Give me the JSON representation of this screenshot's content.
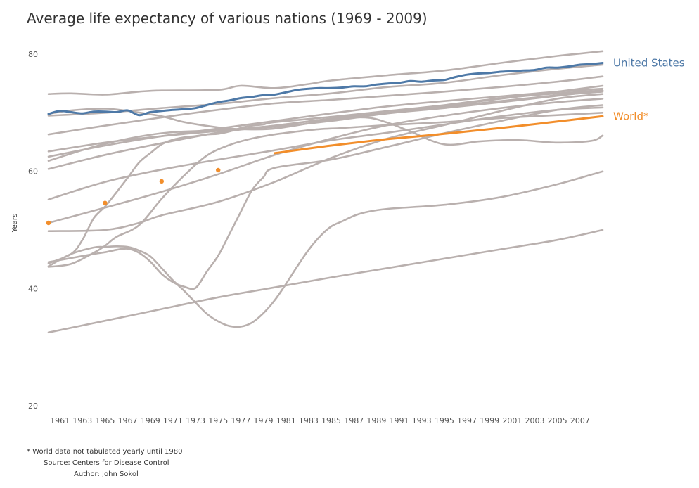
{
  "chart_data": {
    "type": "line",
    "title": "Average life expectancy of various nations (1969 - 2009)",
    "ylabel": "Years",
    "xlabel": "",
    "ylim": [
      20,
      80
    ],
    "xlim": [
      1960,
      2009
    ],
    "yticks": [
      20,
      40,
      60,
      80
    ],
    "xticks": [
      "1961",
      "1963",
      "1965",
      "1967",
      "1969",
      "1971",
      "1973",
      "1975",
      "1977",
      "1979",
      "1981",
      "1983",
      "1985",
      "1987",
      "1989",
      "1991",
      "1993",
      "1995",
      "1997",
      "1999",
      "2001",
      "2003",
      "2005",
      "2007"
    ],
    "grid": false,
    "colors": {
      "background_series": "#b9b0ae",
      "united_states": "#4e79a7",
      "world": "#f28e2b"
    },
    "highlighted": [
      {
        "name": "United States",
        "color": "#4e79a7",
        "x": [
          1960,
          1961,
          1962,
          1963,
          1964,
          1965,
          1966,
          1967,
          1968,
          1969,
          1970,
          1971,
          1972,
          1973,
          1974,
          1975,
          1976,
          1977,
          1978,
          1979,
          1980,
          1981,
          1982,
          1983,
          1984,
          1985,
          1986,
          1987,
          1988,
          1989,
          1990,
          1991,
          1992,
          1993,
          1994,
          1995,
          1996,
          1997,
          1998,
          1999,
          2000,
          2001,
          2002,
          2003,
          2004,
          2005,
          2006,
          2007,
          2008,
          2009
        ],
        "y": [
          69.8,
          70.3,
          70.1,
          69.9,
          70.2,
          70.2,
          70.1,
          70.4,
          69.6,
          70.1,
          70.3,
          70.5,
          70.6,
          70.8,
          71.3,
          71.8,
          72.1,
          72.5,
          72.7,
          73.0,
          73.1,
          73.5,
          73.9,
          74.1,
          74.2,
          74.2,
          74.3,
          74.5,
          74.5,
          74.8,
          75.0,
          75.1,
          75.4,
          75.3,
          75.5,
          75.6,
          76.1,
          76.5,
          76.7,
          76.8,
          77.0,
          77.1,
          77.2,
          77.3,
          77.7,
          77.7,
          77.9,
          78.2,
          78.3,
          78.5
        ]
      },
      {
        "name": "World*",
        "color": "#f28e2b",
        "x": [
          1980,
          1985,
          1990,
          1995,
          2000,
          2005,
          2009
        ],
        "y": [
          63.1,
          64.4,
          65.5,
          66.4,
          67.4,
          68.5,
          69.4
        ],
        "points": {
          "x": [
            1960,
            1965,
            1970,
            1975
          ],
          "y": [
            51.2,
            54.6,
            58.3,
            60.2
          ]
        }
      }
    ],
    "background_series": [
      {
        "x": [
          1960,
          1962,
          1965,
          1968,
          1970,
          1975,
          1977,
          1980,
          1983,
          1985,
          1990,
          1995,
          2000,
          2005,
          2007,
          2009
        ],
        "y": [
          73.2,
          73.3,
          73.1,
          73.6,
          73.8,
          73.9,
          74.6,
          74.2,
          74.9,
          75.5,
          76.4,
          77.2,
          78.5,
          79.7,
          80.1,
          80.5
        ]
      },
      {
        "x": [
          1960,
          1965,
          1970,
          1975,
          1980,
          1985,
          1990,
          1995,
          2000,
          2005,
          2009
        ],
        "y": [
          69.5,
          70.0,
          70.8,
          71.5,
          72.5,
          73.3,
          74.4,
          75.1,
          76.4,
          77.5,
          78.2
        ]
      },
      {
        "x": [
          1960,
          1965,
          1970,
          1975,
          1980,
          1985,
          1990,
          1995,
          2000,
          2005,
          2009
        ],
        "y": [
          66.3,
          67.8,
          69.2,
          70.5,
          71.6,
          72.2,
          72.9,
          73.6,
          74.4,
          75.3,
          76.2
        ]
      },
      {
        "x": [
          1960,
          1965,
          1970,
          1975,
          1980,
          1985,
          1990,
          1995,
          2000,
          2005,
          2009
        ],
        "y": [
          63.4,
          64.9,
          66.0,
          66.9,
          67.8,
          69.0,
          70.0,
          71.2,
          72.4,
          73.6,
          74.6
        ]
      },
      {
        "x": [
          1960,
          1965,
          1970,
          1975,
          1980,
          1985,
          1990,
          1995,
          2000,
          2005,
          2009
        ],
        "y": [
          62.5,
          64.4,
          66.0,
          67.3,
          68.6,
          69.9,
          71.1,
          72.0,
          72.8,
          73.6,
          74.1
        ]
      },
      {
        "x": [
          1960,
          1965,
          1970,
          1975,
          1980,
          1985,
          1990,
          1995,
          2000,
          2005,
          2009
        ],
        "y": [
          61.8,
          64.7,
          66.5,
          67.0,
          67.6,
          68.6,
          69.9,
          70.8,
          71.8,
          72.9,
          73.8
        ]
      },
      {
        "x": [
          1960,
          1965,
          1970,
          1975,
          1980,
          1985,
          1990,
          1995,
          2000,
          2005,
          2009
        ],
        "y": [
          60.4,
          62.8,
          64.8,
          66.6,
          67.8,
          69.0,
          70.0,
          71.0,
          72.0,
          73.0,
          73.6
        ]
      },
      {
        "x": [
          1960,
          1962,
          1965,
          1967,
          1970,
          1972,
          1975,
          1977,
          1980,
          1985,
          1988,
          1990,
          1992,
          1995,
          1998,
          2000,
          2002,
          2005,
          2008,
          2009
        ],
        "y": [
          69.8,
          70.4,
          70.7,
          70.3,
          69.4,
          68.4,
          67.5,
          67.2,
          67.3,
          68.8,
          69.2,
          68.3,
          66.8,
          64.6,
          65.1,
          65.3,
          65.3,
          64.9,
          65.2,
          66.1
        ]
      },
      {
        "x": [
          1960,
          1965,
          1970,
          1975,
          1980,
          1985,
          1990,
          1995,
          2000,
          2005,
          2009
        ],
        "y": [
          55.2,
          58.2,
          60.3,
          62.0,
          63.6,
          65.3,
          66.6,
          68.0,
          69.4,
          70.5,
          70.9
        ]
      },
      {
        "x": [
          1960,
          1965,
          1970,
          1975,
          1980,
          1985,
          1990,
          1995,
          2000,
          2005,
          2009
        ],
        "y": [
          51.2,
          53.8,
          56.5,
          59.5,
          62.8,
          65.6,
          67.9,
          69.5,
          70.8,
          71.8,
          72.4
        ]
      },
      {
        "x": [
          1960,
          1962,
          1964,
          1965,
          1966,
          1968,
          1970,
          1972,
          1974,
          1976,
          1978,
          1980,
          1982,
          1984,
          1986,
          1990,
          1995,
          2000,
          2005,
          2009
        ],
        "y": [
          43.7,
          44.2,
          46.1,
          47.3,
          48.8,
          50.8,
          55.3,
          59.3,
          62.7,
          64.5,
          65.6,
          66.3,
          66.8,
          67.2,
          67.4,
          67.9,
          68.4,
          69.1,
          69.6,
          70.0
        ]
      },
      {
        "x": [
          1960,
          1962,
          1963,
          1964,
          1965,
          1966,
          1967,
          1968,
          1969,
          1970,
          1971,
          1972,
          1973,
          1974,
          1975,
          1976,
          1977,
          1978,
          1979,
          1980,
          1985,
          1990,
          1995,
          2000,
          2005,
          2009
        ],
        "y": [
          44.3,
          45.9,
          48.3,
          52.0,
          54.0,
          56.4,
          58.9,
          61.5,
          63.1,
          64.6,
          65.4,
          65.8,
          66.0,
          66.3,
          66.4,
          66.8,
          67.4,
          67.8,
          68.0,
          68.4,
          69.3,
          70.3,
          71.3,
          72.5,
          73.3,
          73.8
        ]
      },
      {
        "x": [
          1960,
          1965,
          1968,
          1970,
          1975,
          1980,
          1985,
          1990,
          1995,
          2000,
          2005,
          2009
        ],
        "y": [
          49.8,
          50.0,
          51.2,
          52.5,
          54.8,
          58.2,
          62.3,
          65.6,
          67.9,
          70.3,
          72.4,
          73.2
        ]
      },
      {
        "x": [
          1960,
          1962,
          1964,
          1965,
          1966,
          1967,
          1968,
          1969,
          1970,
          1971,
          1972,
          1973,
          1974,
          1975,
          1976,
          1977,
          1978,
          1979,
          1980,
          1985,
          1990,
          1995,
          2000,
          2005,
          2009
        ],
        "y": [
          44.5,
          45.2,
          45.9,
          46.2,
          46.6,
          46.8,
          46.1,
          44.6,
          42.5,
          41.1,
          40.3,
          40.1,
          42.9,
          45.6,
          49.3,
          53.1,
          56.8,
          59.0,
          60.6,
          62.0,
          64.2,
          66.5,
          68.6,
          70.5,
          71.3
        ]
      },
      {
        "x": [
          1960,
          1962,
          1964,
          1965,
          1966,
          1967,
          1968,
          1969,
          1970,
          1971,
          1972,
          1973,
          1974,
          1975,
          1976,
          1977,
          1978,
          1979,
          1980,
          1981,
          1982,
          1983,
          1984,
          1985,
          1986,
          1987,
          1988,
          1990,
          1995,
          2000,
          2005,
          2009
        ],
        "y": [
          43.8,
          45.9,
          47.0,
          47.1,
          47.2,
          47.1,
          46.5,
          45.5,
          43.5,
          41.4,
          39.6,
          37.6,
          35.7,
          34.4,
          33.6,
          33.5,
          34.2,
          35.8,
          38.0,
          40.8,
          43.8,
          46.6,
          48.9,
          50.6,
          51.5,
          52.4,
          53.0,
          53.6,
          54.3,
          55.6,
          57.8,
          60.0
        ]
      },
      {
        "x": [
          1960,
          1965,
          1970,
          1975,
          1980,
          1985,
          1990,
          1995,
          2000,
          2005,
          2009
        ],
        "y": [
          32.5,
          34.5,
          36.5,
          38.5,
          40.2,
          41.9,
          43.5,
          45.1,
          46.7,
          48.3,
          50.0
        ]
      }
    ]
  },
  "notes": {
    "footnote": "* World data not tabulated yearly until 1980",
    "source": "Source: Centers for Disease Control",
    "author": "Author: John Sokol"
  }
}
